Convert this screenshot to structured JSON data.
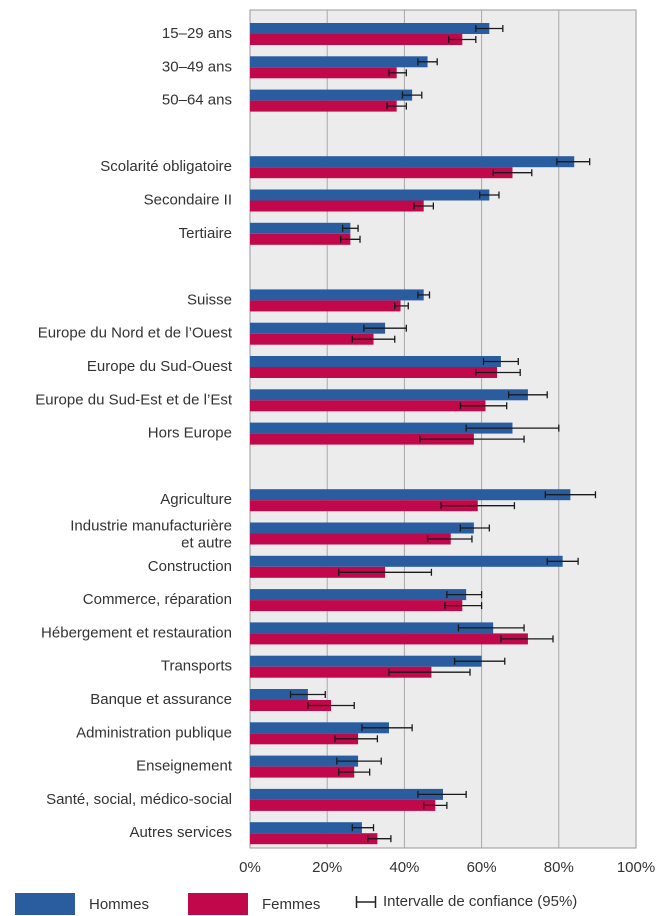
{
  "chart_data": {
    "type": "bar",
    "orientation": "horizontal",
    "categories": [
      "15–29 ans",
      "30–49 ans",
      "50–64 ans",
      "Scolarité obligatoire",
      "Secondaire II",
      "Tertiaire",
      "Suisse",
      "Europe du Nord et de l’Ouest",
      "Europe du Sud-Ouest",
      "Europe du Sud-Est et de l’Est",
      "Hors Europe",
      "Agriculture",
      "Industrie manufacturière et autre",
      "Construction",
      "Commerce, réparation",
      "Hébergement et restauration",
      "Transports",
      "Banque et assurance",
      "Administration publique",
      "Enseignement",
      "Santé, social, médico-social",
      "Autres services"
    ],
    "groups": [
      [
        "15–29 ans",
        "30–49 ans",
        "50–64 ans"
      ],
      [
        "Scolarité obligatoire",
        "Secondaire II",
        "Tertiaire"
      ],
      [
        "Suisse",
        "Europe du Nord et de l’Ouest",
        "Europe du Sud-Ouest",
        "Europe du Sud-Est et de l’Est",
        "Hors Europe"
      ],
      [
        "Agriculture",
        "Industrie manufacturière et autre",
        "Construction",
        "Commerce, réparation",
        "Hébergement et restauration",
        "Transports",
        "Banque et assurance",
        "Administration publique",
        "Enseignement",
        "Santé, social, médico-social",
        "Autres services"
      ]
    ],
    "series": [
      {
        "name": "Hommes",
        "color": "#2a5d9f",
        "values": [
          62,
          46,
          42,
          84,
          62,
          26,
          45,
          35,
          65,
          72,
          68,
          83,
          58,
          81,
          56,
          63,
          60,
          15,
          36,
          28,
          50,
          29
        ],
        "ci": [
          [
            58.5,
            65.5
          ],
          [
            43.5,
            48.5
          ],
          [
            39.5,
            44.5
          ],
          [
            79.5,
            88
          ],
          [
            59.5,
            64.5
          ],
          [
            24,
            28
          ],
          [
            43.5,
            46.5
          ],
          [
            29.5,
            40.5
          ],
          [
            60.5,
            69.5
          ],
          [
            67,
            77
          ],
          [
            56,
            80
          ],
          [
            76.5,
            89.5
          ],
          [
            54.5,
            62
          ],
          [
            77,
            85
          ],
          [
            51,
            60
          ],
          [
            54,
            71
          ],
          [
            53,
            66
          ],
          [
            10.5,
            19.5
          ],
          [
            29,
            42
          ],
          [
            22.5,
            34
          ],
          [
            43.5,
            56
          ],
          [
            26.5,
            32
          ]
        ]
      },
      {
        "name": "Femmes",
        "color": "#c0084a",
        "values": [
          55,
          38,
          38,
          68,
          45,
          26,
          39,
          32,
          64,
          61,
          58,
          59,
          52,
          35,
          55,
          72,
          47,
          21,
          28,
          27,
          48,
          33
        ],
        "ci": [
          [
            51.5,
            58.5
          ],
          [
            36,
            40.5
          ],
          [
            35.5,
            40.5
          ],
          [
            63,
            73
          ],
          [
            42.5,
            47.5
          ],
          [
            23.5,
            28.5
          ],
          [
            37.5,
            41
          ],
          [
            26.5,
            37.5
          ],
          [
            58.5,
            70
          ],
          [
            54.5,
            66.5
          ],
          [
            44,
            71
          ],
          [
            49.5,
            68.5
          ],
          [
            46,
            57.5
          ],
          [
            23,
            47
          ],
          [
            50.5,
            60
          ],
          [
            65,
            78.5
          ],
          [
            36,
            57
          ],
          [
            15,
            27
          ],
          [
            22,
            33
          ],
          [
            23,
            31
          ],
          [
            45,
            51
          ],
          [
            30.5,
            36.5
          ]
        ]
      }
    ],
    "xlim": [
      0,
      100
    ],
    "xticks": [
      "0%",
      "20%",
      "40%",
      "60%",
      "80%",
      "100%"
    ],
    "grid": true,
    "legend_position": "bottom",
    "legend": {
      "men": "Hommes",
      "women": "Femmes",
      "ci": "Intervalle de confiance (95%)"
    }
  }
}
